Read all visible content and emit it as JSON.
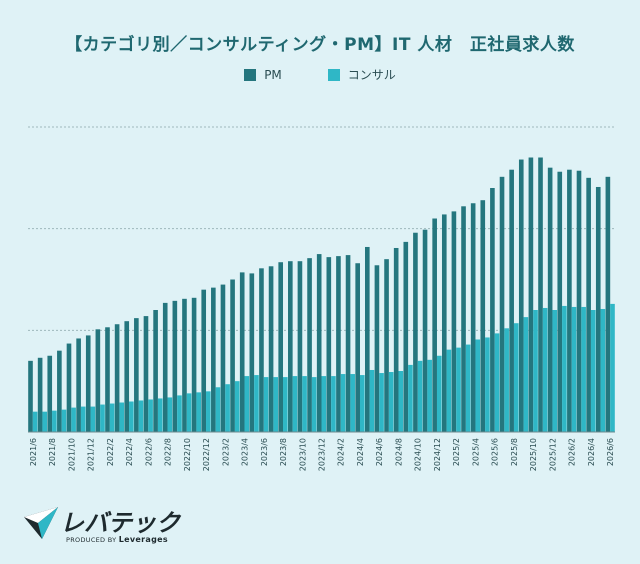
{
  "colors": {
    "background": "#dff2f6",
    "pm": "#24767e",
    "consult": "#2fb7c6",
    "grid": "#9fb8bc",
    "axis_text": "#2a4d52"
  },
  "logo": {
    "text": "レバテック",
    "sub_prefix": "PRODUCED BY",
    "sub_brand": "Leverages",
    "icon": "paper-plane-icon"
  },
  "chart_data": {
    "type": "bar",
    "title": "【カテゴリ別／コンサルティング・PM】IT 人材　正社員求人数",
    "legend_position": "top",
    "grid": true,
    "ylim": [
      0,
      3
    ],
    "yticks": [
      1,
      2,
      3
    ],
    "xlabel": "",
    "ylabel": "",
    "categories": [
      "2021/6",
      "2021/7",
      "2021/8",
      "2021/9",
      "2021/10",
      "2021/11",
      "2021/12",
      "2022/1",
      "2022/2",
      "2022/3",
      "2022/4",
      "2022/5",
      "2022/6",
      "2022/7",
      "2022/8",
      "2022/9",
      "2022/10",
      "2022/11",
      "2022/12",
      "2023/1",
      "2023/2",
      "2023/3",
      "2023/4",
      "2023/5",
      "2023/6",
      "2023/7",
      "2023/8",
      "2023/9",
      "2023/10",
      "2023/11",
      "2023/12",
      "2024/1",
      "2024/2",
      "2024/3",
      "2024/4",
      "2024/5",
      "2024/6",
      "2024/7",
      "2024/8",
      "2024/9",
      "2024/10",
      "2024/11",
      "2024/12",
      "2025/1",
      "2025/2",
      "2025/3",
      "2025/4",
      "2025/5",
      "2025/6",
      "2025/7",
      "2025/8",
      "2025/9",
      "2025/10",
      "2025/11",
      "2025/12",
      "2026/1",
      "2026/2",
      "2026/3",
      "2026/4",
      "2026/5",
      "2026/6"
    ],
    "tick_labels": [
      "2021/6",
      "2021/8",
      "2021/10",
      "2021/12",
      "2022/2",
      "2022/4",
      "2022/6",
      "2022/8",
      "2022/10",
      "2022/12",
      "2023/2",
      "2023/4",
      "2023/6",
      "2023/8",
      "2023/10",
      "2023/12",
      "2024/2",
      "2024/4",
      "2024/6",
      "2024/8",
      "2024/10",
      "2024/12",
      "2025/2",
      "2025/4",
      "2025/6",
      "2025/8",
      "2025/10",
      "2025/12",
      "2026/2",
      "2026/4",
      "2026/6"
    ],
    "series": [
      {
        "name": "PM",
        "values": [
          0.7,
          0.73,
          0.75,
          0.8,
          0.87,
          0.92,
          0.95,
          1.01,
          1.03,
          1.06,
          1.09,
          1.12,
          1.14,
          1.2,
          1.27,
          1.29,
          1.31,
          1.32,
          1.4,
          1.42,
          1.45,
          1.5,
          1.57,
          1.56,
          1.61,
          1.63,
          1.67,
          1.68,
          1.68,
          1.71,
          1.75,
          1.72,
          1.73,
          1.74,
          1.66,
          1.82,
          1.64,
          1.7,
          1.81,
          1.87,
          1.96,
          1.99,
          2.1,
          2.14,
          2.17,
          2.22,
          2.25,
          2.28,
          2.4,
          2.51,
          2.58,
          2.68,
          2.7,
          2.7,
          2.6,
          2.56,
          2.58,
          2.57,
          2.5,
          2.41,
          2.51
        ]
      },
      {
        "name": "コンサル",
        "values": [
          0.2,
          0.2,
          0.21,
          0.22,
          0.24,
          0.25,
          0.25,
          0.27,
          0.28,
          0.29,
          0.3,
          0.31,
          0.32,
          0.33,
          0.34,
          0.36,
          0.38,
          0.39,
          0.4,
          0.44,
          0.47,
          0.5,
          0.55,
          0.56,
          0.54,
          0.54,
          0.54,
          0.55,
          0.55,
          0.54,
          0.55,
          0.55,
          0.57,
          0.57,
          0.56,
          0.61,
          0.58,
          0.59,
          0.6,
          0.66,
          0.7,
          0.71,
          0.75,
          0.81,
          0.83,
          0.86,
          0.91,
          0.93,
          0.97,
          1.02,
          1.07,
          1.13,
          1.2,
          1.22,
          1.2,
          1.24,
          1.23,
          1.23,
          1.2,
          1.21,
          1.26
        ]
      }
    ]
  }
}
